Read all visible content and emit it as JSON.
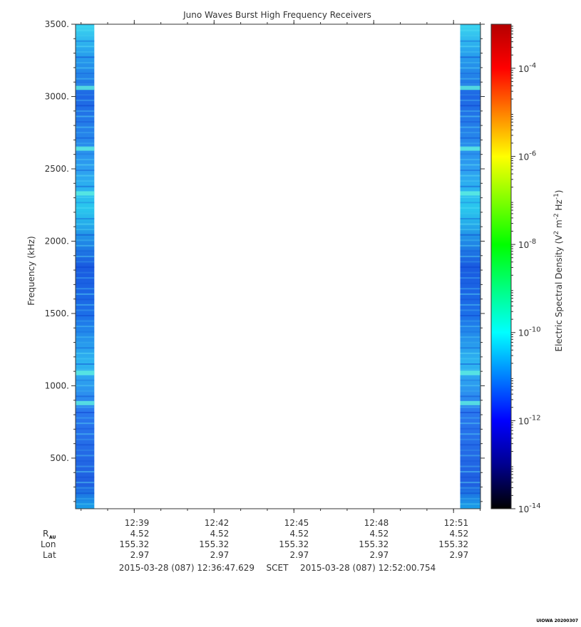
{
  "chart_data": {
    "type": "heatmap",
    "title": "Juno Waves Burst High Frequency Receivers",
    "ylabel": "Frequency (kHz)",
    "ylim": [
      150,
      3500
    ],
    "y_scale": "linear",
    "y_ticks": [
      500,
      1000,
      1500,
      2000,
      2500,
      3000,
      3500
    ],
    "y_tick_labels": [
      "500.",
      "1000.",
      "1500.",
      "2000.",
      "2500.",
      "3000.",
      "3500."
    ],
    "x_tick_labels": [
      "12:39",
      "12:42",
      "12:45",
      "12:48",
      "12:51"
    ],
    "time_range": [
      "12:36:47.629",
      "12:52:00.754"
    ],
    "data_blocks": [
      {
        "start": "12:36:47",
        "end": "12:37:30"
      },
      {
        "start": "12:51:15",
        "end": "12:52:00"
      }
    ],
    "band_enhancements_khz": [
      880,
      1090,
      2330,
      2640,
      3060
    ],
    "colorbar": {
      "label_prefix": "Electric Spectral Density (V",
      "label_exp1": "2",
      "label_mid": " m",
      "label_exp2": "-2",
      "label_mid2": " Hz",
      "label_exp3": "-1",
      "label_suffix": ")",
      "scale": "log",
      "range": [
        1e-14,
        0.001
      ],
      "tick_base": "10",
      "tick_exponents": [
        "-14",
        "-12",
        "-10",
        "-8",
        "-6",
        "-4"
      ],
      "colors": [
        "#000000",
        "#00008f",
        "#0000ff",
        "#0080ff",
        "#00ffff",
        "#00ff80",
        "#00ff00",
        "#80ff00",
        "#ffff00",
        "#ff8000",
        "#ff0000",
        "#b40000"
      ]
    },
    "ephemeris": {
      "rows": [
        "R",
        "Lon",
        "Lat"
      ],
      "r_subscript": "AU",
      "values": {
        "R": [
          "4.52",
          "4.52",
          "4.52",
          "4.52",
          "4.52"
        ],
        "Lon": [
          "155.32",
          "155.32",
          "155.32",
          "155.32",
          "155.32"
        ],
        "Lat": [
          "2.97",
          "2.97",
          "2.97",
          "2.97",
          "2.97"
        ]
      }
    },
    "time_footer": {
      "start": "2015-03-28 (087) 12:36:47.629",
      "label": "SCET",
      "end": "2015-03-28 (087) 12:52:00.754"
    },
    "credit": "UIOWA 20200307"
  }
}
